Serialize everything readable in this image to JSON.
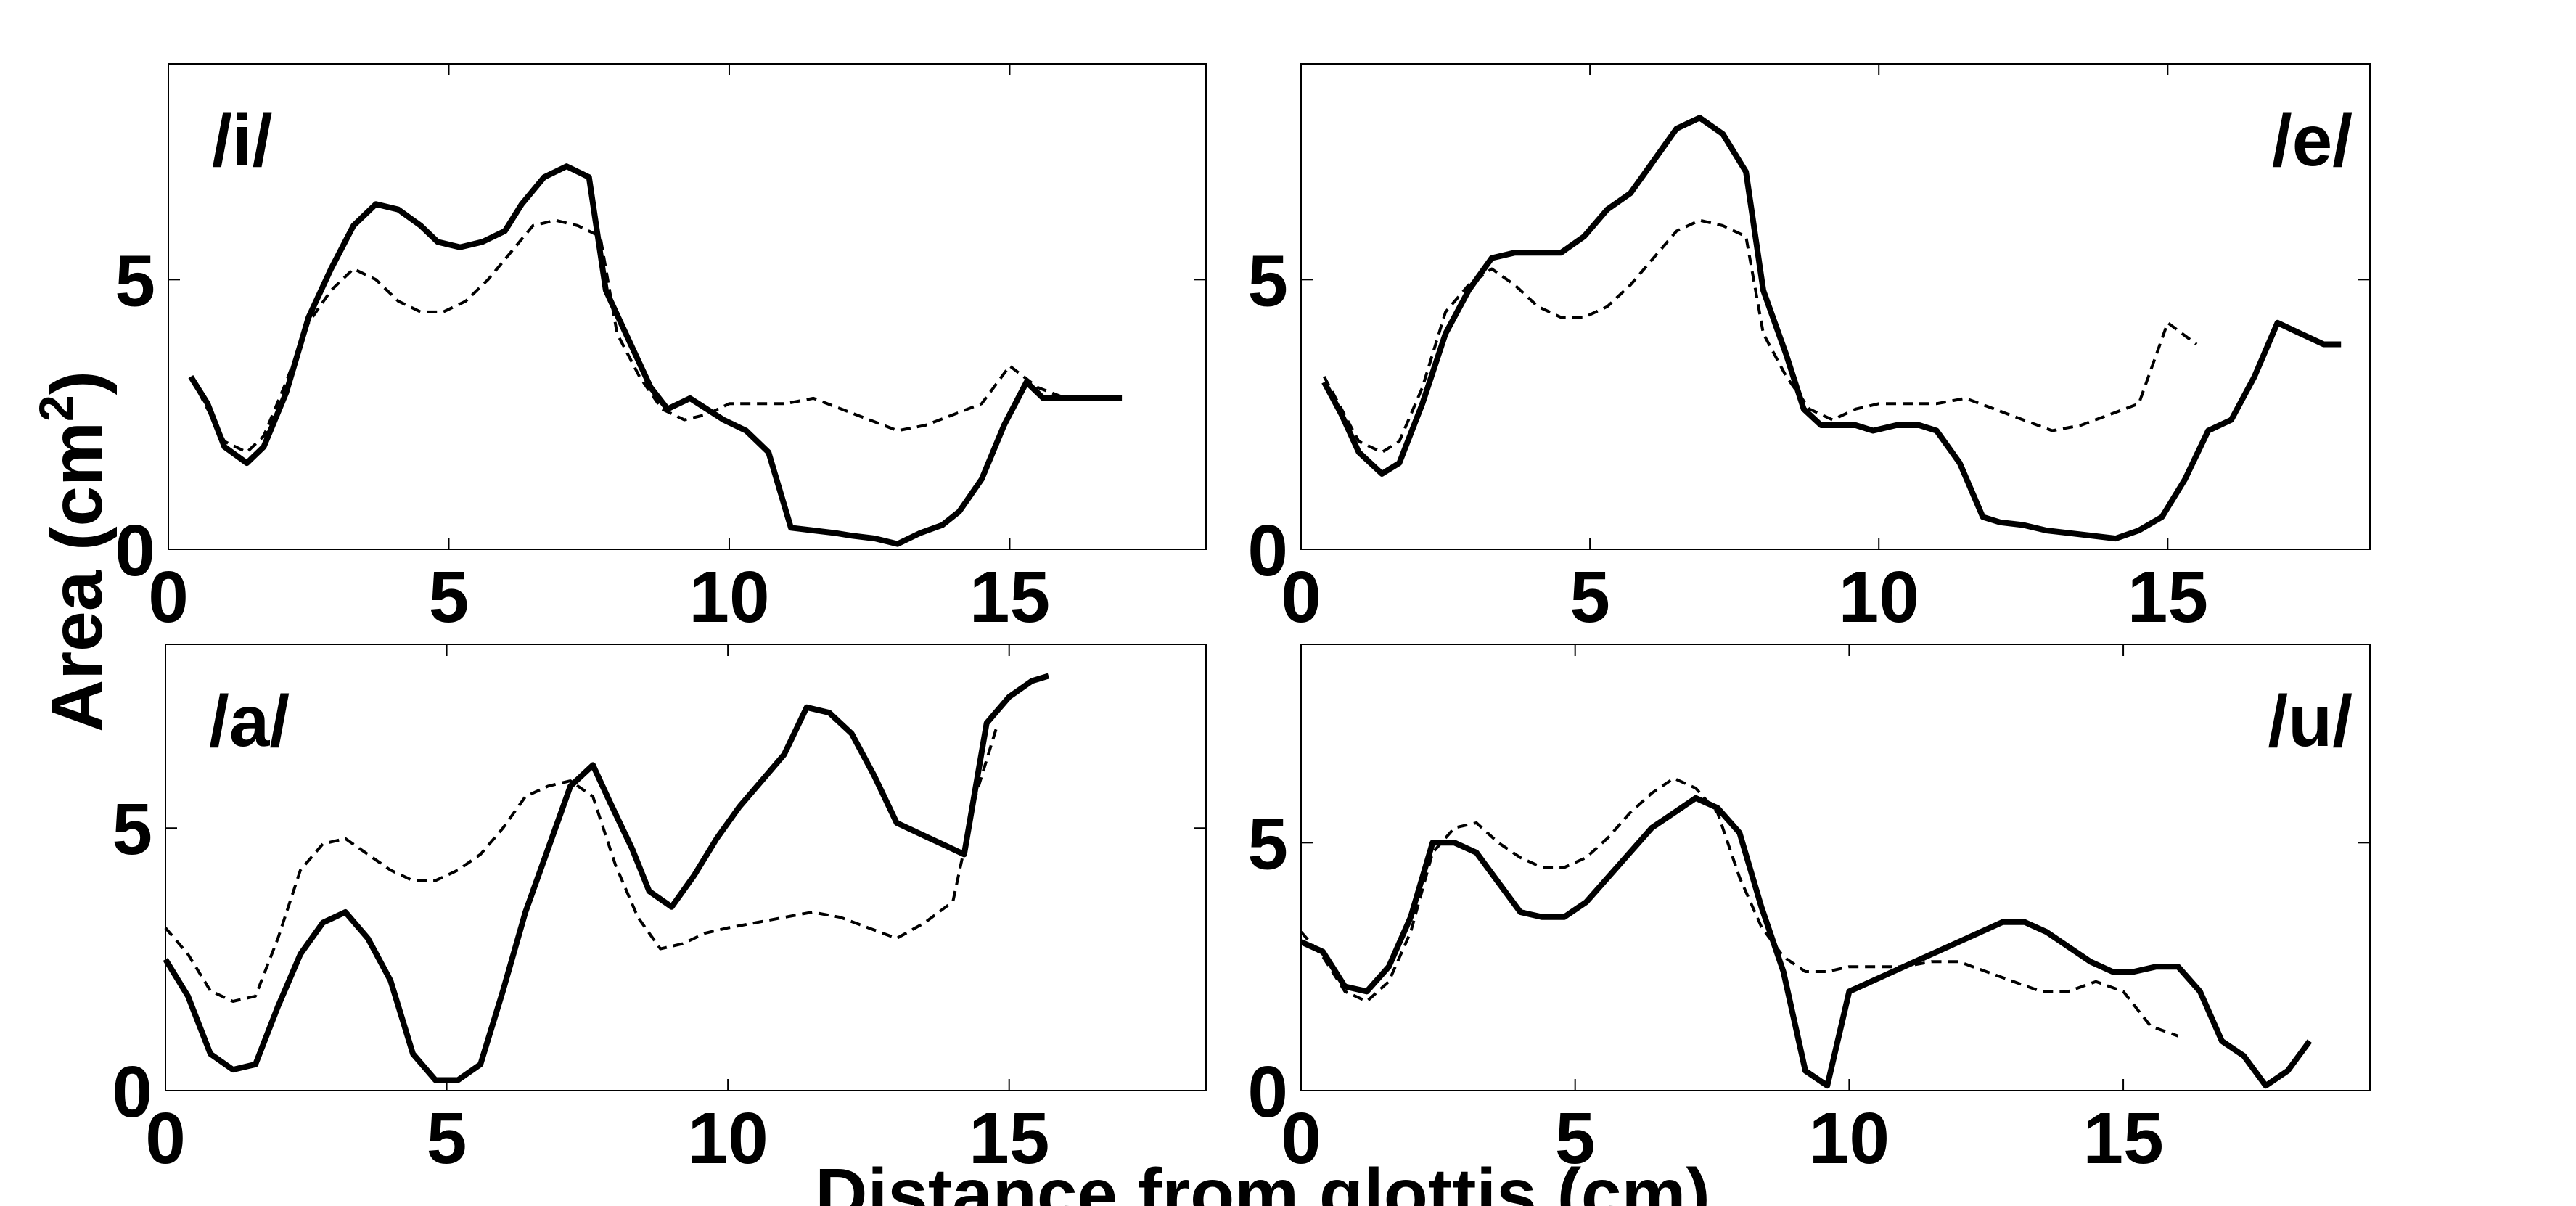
{
  "figure": {
    "ylabel": "Area (cm",
    "ylabel_sup": "2",
    "ylabel_close": ")",
    "xlabel": "Distance from glottis (cm)"
  },
  "chart_data": [
    {
      "type": "line",
      "label": "/i/",
      "label_position": "top-left",
      "xlim": [
        0,
        18.5
      ],
      "ylim": [
        0,
        9
      ],
      "xticks": [
        0,
        5,
        10,
        15
      ],
      "yticks": [
        0,
        5
      ],
      "grid": false,
      "series": [
        {
          "style": "solid",
          "color": "#000000",
          "x": [
            0.4,
            0.7,
            1.0,
            1.4,
            1.7,
            2.1,
            2.5,
            2.9,
            3.3,
            3.7,
            4.1,
            4.5,
            4.8,
            5.2,
            5.6,
            6.0,
            6.3,
            6.7,
            7.1,
            7.5,
            7.8,
            8.2,
            8.6,
            8.9,
            9.3,
            9.6,
            9.9,
            10.3,
            10.7,
            11.1,
            11.5,
            11.9,
            12.2,
            12.6,
            13.0,
            13.4,
            13.8,
            14.1,
            14.5,
            14.9,
            15.3,
            15.6,
            16.0,
            16.4,
            16.7,
            17.0
          ],
          "y": [
            3.2,
            2.7,
            1.9,
            1.6,
            1.9,
            2.9,
            4.3,
            5.2,
            6.0,
            6.4,
            6.3,
            6.0,
            5.7,
            5.6,
            5.7,
            5.9,
            6.4,
            6.9,
            7.1,
            6.9,
            4.8,
            3.9,
            3.0,
            2.6,
            2.8,
            2.6,
            2.4,
            2.2,
            1.8,
            0.4,
            0.35,
            0.3,
            0.25,
            0.2,
            0.1,
            0.3,
            0.45,
            0.7,
            1.3,
            2.3,
            3.1,
            2.8,
            2.8,
            2.8,
            2.8,
            2.8
          ]
        },
        {
          "style": "dashed",
          "color": "#000000",
          "x": [
            0.4,
            0.7,
            1.0,
            1.4,
            1.7,
            2.1,
            2.5,
            2.9,
            3.3,
            3.7,
            4.1,
            4.5,
            4.9,
            5.3,
            5.7,
            6.1,
            6.5,
            6.9,
            7.3,
            7.7,
            8.0,
            8.4,
            8.8,
            9.2,
            9.6,
            10.0,
            10.5,
            11.0,
            11.5,
            12.0,
            12.5,
            13.0,
            13.5,
            14.0,
            14.5,
            15.0,
            15.5,
            16.0
          ],
          "y": [
            3.2,
            2.6,
            2.0,
            1.8,
            2.1,
            3.1,
            4.2,
            4.8,
            5.2,
            5.0,
            4.6,
            4.4,
            4.4,
            4.6,
            5.0,
            5.5,
            6.0,
            6.1,
            6.0,
            5.8,
            4.0,
            3.2,
            2.6,
            2.4,
            2.5,
            2.7,
            2.7,
            2.7,
            2.8,
            2.6,
            2.4,
            2.2,
            2.3,
            2.5,
            2.7,
            3.4,
            3.0,
            2.8
          ]
        }
      ]
    },
    {
      "type": "line",
      "label": "/e/",
      "label_position": "top-right",
      "xlim": [
        0,
        18.5
      ],
      "ylim": [
        0,
        9
      ],
      "xticks": [
        0,
        5,
        10,
        15
      ],
      "yticks": [
        0,
        5
      ],
      "grid": false,
      "series": [
        {
          "style": "solid",
          "color": "#000000",
          "x": [
            0.4,
            0.7,
            1.0,
            1.4,
            1.7,
            2.1,
            2.5,
            2.9,
            3.3,
            3.7,
            4.1,
            4.5,
            4.9,
            5.3,
            5.7,
            6.1,
            6.5,
            6.9,
            7.3,
            7.7,
            8.0,
            8.4,
            8.7,
            9.0,
            9.3,
            9.6,
            9.9,
            10.3,
            10.7,
            11.0,
            11.4,
            11.8,
            12.1,
            12.5,
            12.9,
            13.3,
            13.7,
            14.1,
            14.5,
            14.9,
            15.3,
            15.7,
            16.1,
            16.5,
            16.9,
            17.3,
            17.7,
            18.0
          ],
          "y": [
            3.1,
            2.5,
            1.8,
            1.4,
            1.6,
            2.7,
            4.0,
            4.8,
            5.4,
            5.5,
            5.5,
            5.5,
            5.8,
            6.3,
            6.6,
            7.2,
            7.8,
            8.0,
            7.7,
            7.0,
            4.8,
            3.6,
            2.6,
            2.3,
            2.3,
            2.3,
            2.2,
            2.3,
            2.3,
            2.2,
            1.6,
            0.6,
            0.5,
            0.45,
            0.35,
            0.3,
            0.25,
            0.2,
            0.35,
            0.6,
            1.3,
            2.2,
            2.4,
            3.2,
            4.2,
            4.0,
            3.8,
            3.8
          ]
        },
        {
          "style": "dashed",
          "color": "#000000",
          "x": [
            0.4,
            0.7,
            1.0,
            1.4,
            1.7,
            2.1,
            2.5,
            2.9,
            3.3,
            3.7,
            4.1,
            4.5,
            4.9,
            5.3,
            5.7,
            6.1,
            6.5,
            6.9,
            7.3,
            7.7,
            8.0,
            8.4,
            8.8,
            9.2,
            9.6,
            10.0,
            10.5,
            11.0,
            11.5,
            12.0,
            12.5,
            13.0,
            13.5,
            14.0,
            14.5,
            15.0,
            15.5
          ],
          "y": [
            3.2,
            2.6,
            2.0,
            1.8,
            2.0,
            3.0,
            4.4,
            4.9,
            5.2,
            4.9,
            4.5,
            4.3,
            4.3,
            4.5,
            4.9,
            5.4,
            5.9,
            6.1,
            6.0,
            5.8,
            4.0,
            3.2,
            2.6,
            2.4,
            2.6,
            2.7,
            2.7,
            2.7,
            2.8,
            2.6,
            2.4,
            2.2,
            2.3,
            2.5,
            2.7,
            4.2,
            3.8
          ]
        }
      ]
    },
    {
      "type": "line",
      "label": "/a/",
      "label_position": "top-left",
      "xlim": [
        0,
        18.5
      ],
      "ylim": [
        0,
        8.5
      ],
      "xticks": [
        0,
        5,
        10,
        15
      ],
      "yticks": [
        0,
        5
      ],
      "grid": false,
      "series": [
        {
          "style": "solid",
          "color": "#000000",
          "x": [
            0.0,
            0.4,
            0.8,
            1.2,
            1.6,
            2.0,
            2.4,
            2.8,
            3.2,
            3.6,
            4.0,
            4.4,
            4.8,
            5.2,
            5.6,
            6.0,
            6.4,
            6.8,
            7.2,
            7.6,
            7.9,
            8.3,
            8.6,
            9.0,
            9.4,
            9.8,
            10.2,
            10.6,
            11.0,
            11.4,
            11.8,
            12.2,
            12.6,
            13.0,
            13.4,
            13.8,
            14.2,
            14.6,
            15.0,
            15.4,
            15.7
          ],
          "y": [
            2.5,
            1.8,
            0.7,
            0.4,
            0.5,
            1.6,
            2.6,
            3.2,
            3.4,
            2.9,
            2.1,
            0.7,
            0.2,
            0.2,
            0.5,
            1.9,
            3.4,
            4.6,
            5.8,
            6.2,
            5.5,
            4.6,
            3.8,
            3.5,
            4.1,
            4.8,
            5.4,
            5.9,
            6.4,
            7.3,
            7.2,
            6.8,
            6.0,
            5.1,
            4.9,
            4.7,
            4.5,
            7.0,
            7.5,
            7.8,
            7.9
          ]
        },
        {
          "style": "dashed",
          "color": "#000000",
          "x": [
            0.0,
            0.4,
            0.8,
            1.2,
            1.6,
            2.0,
            2.4,
            2.8,
            3.2,
            3.6,
            4.0,
            4.4,
            4.8,
            5.2,
            5.6,
            6.0,
            6.4,
            6.8,
            7.2,
            7.6,
            8.0,
            8.4,
            8.8,
            9.2,
            9.6,
            10.0,
            10.5,
            11.0,
            11.5,
            12.0,
            12.5,
            13.0,
            13.5,
            14.0,
            14.4,
            14.8
          ],
          "y": [
            3.1,
            2.6,
            1.9,
            1.7,
            1.8,
            2.9,
            4.2,
            4.7,
            4.8,
            4.5,
            4.2,
            4.0,
            4.0,
            4.2,
            4.5,
            5.0,
            5.6,
            5.8,
            5.9,
            5.6,
            4.3,
            3.3,
            2.7,
            2.8,
            3.0,
            3.1,
            3.2,
            3.3,
            3.4,
            3.3,
            3.1,
            2.9,
            3.2,
            3.6,
            5.6,
            7.0
          ]
        }
      ]
    },
    {
      "type": "line",
      "label": "/u/",
      "label_position": "top-right",
      "xlim": [
        0,
        19.5
      ],
      "ylim": [
        0,
        9
      ],
      "xticks": [
        0,
        5,
        10,
        15
      ],
      "yticks": [
        0,
        5
      ],
      "grid": false,
      "series": [
        {
          "style": "solid",
          "color": "#000000",
          "x": [
            0.0,
            0.4,
            0.8,
            1.2,
            1.6,
            2.0,
            2.4,
            2.8,
            3.2,
            3.6,
            4.0,
            4.4,
            4.8,
            5.2,
            5.6,
            6.0,
            6.4,
            6.8,
            7.2,
            7.6,
            8.0,
            8.4,
            8.8,
            9.2,
            9.6,
            10.0,
            10.4,
            10.8,
            11.2,
            11.6,
            12.0,
            12.4,
            12.8,
            13.2,
            13.6,
            14.0,
            14.4,
            14.8,
            15.2,
            15.6,
            16.0,
            16.4,
            16.8,
            17.2,
            17.6,
            18.0,
            18.4
          ],
          "y": [
            3.0,
            2.8,
            2.1,
            2.0,
            2.5,
            3.5,
            5.0,
            5.0,
            4.8,
            4.2,
            3.6,
            3.5,
            3.5,
            3.8,
            4.3,
            4.8,
            5.3,
            5.6,
            5.9,
            5.7,
            5.2,
            3.7,
            2.4,
            0.4,
            0.1,
            2.0,
            2.2,
            2.4,
            2.6,
            2.8,
            3.0,
            3.2,
            3.4,
            3.4,
            3.2,
            2.9,
            2.6,
            2.4,
            2.4,
            2.5,
            2.5,
            2.0,
            1.0,
            0.7,
            0.1,
            0.4,
            1.0
          ]
        },
        {
          "style": "dashed",
          "color": "#000000",
          "x": [
            0.0,
            0.4,
            0.8,
            1.2,
            1.6,
            2.0,
            2.4,
            2.8,
            3.2,
            3.6,
            4.0,
            4.4,
            4.8,
            5.2,
            5.6,
            6.0,
            6.4,
            6.8,
            7.2,
            7.6,
            8.0,
            8.4,
            8.8,
            9.2,
            9.6,
            10.0,
            10.5,
            11.0,
            11.5,
            12.0,
            12.5,
            13.0,
            13.5,
            14.0,
            14.5,
            15.0,
            15.5,
            16.0
          ],
          "y": [
            3.2,
            2.7,
            2.0,
            1.8,
            2.2,
            3.2,
            4.8,
            5.3,
            5.4,
            5.0,
            4.7,
            4.5,
            4.5,
            4.7,
            5.1,
            5.6,
            6.0,
            6.3,
            6.1,
            5.6,
            4.3,
            3.3,
            2.7,
            2.4,
            2.4,
            2.5,
            2.5,
            2.5,
            2.6,
            2.6,
            2.4,
            2.2,
            2.0,
            2.0,
            2.2,
            2.0,
            1.3,
            1.1
          ]
        }
      ]
    }
  ]
}
